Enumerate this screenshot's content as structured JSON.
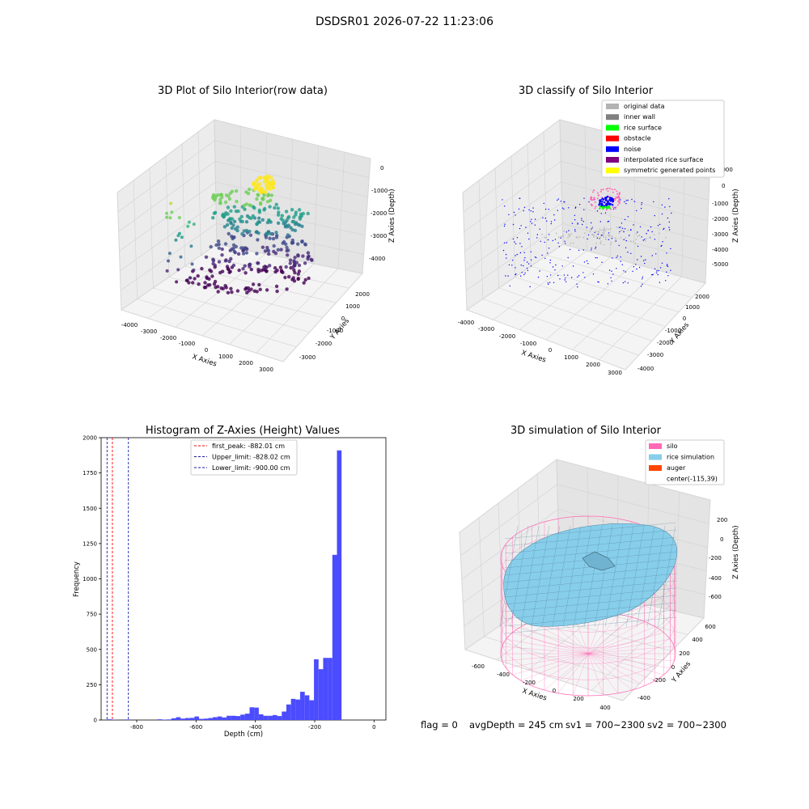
{
  "suptitle": "DSDSR01 2026-07-22 11:23:06",
  "chart_data": [
    {
      "type": "scatter",
      "projection": "3d",
      "title": "3D Plot of Silo Interior(row data)",
      "xlabel": "X Axies",
      "ylabel": "Y Axies",
      "zlabel": "Z Axies (Depth)",
      "x_ticks": [
        "-4000",
        "-3000",
        "-2000",
        "-1000",
        "0",
        "1000",
        "2000",
        "3000"
      ],
      "y_ticks": [
        "-3000",
        "-2000",
        "-1000",
        "0",
        "1000",
        "2000"
      ],
      "z_ticks": [
        "-4000",
        "-3000",
        "-2000",
        "-1000",
        "0"
      ],
      "xlim": [
        -4200,
        3200
      ],
      "ylim": [
        -3700,
        2600
      ],
      "zlim": [
        -4600,
        200
      ],
      "colormap": "viridis",
      "grid": true
    },
    {
      "type": "scatter",
      "projection": "3d",
      "title": "3D classify of Silo Interior",
      "xlabel": "X Axies",
      "ylabel": "Y Axies",
      "zlabel": "Z Axies (Depth)",
      "x_ticks": [
        "-4000",
        "-3000",
        "-2000",
        "-1000",
        "0",
        "1000",
        "2000",
        "3000"
      ],
      "y_ticks": [
        "-4000",
        "-3000",
        "-2000",
        "-1000",
        "0",
        "1000",
        "2000"
      ],
      "z_ticks": [
        "-5000",
        "-4000",
        "-3000",
        "-2000",
        "-1000",
        "0",
        "1000"
      ],
      "legend_position": "top-right",
      "legend": [
        {
          "label": "original data",
          "color": "#b3b3b3"
        },
        {
          "label": "inner wall",
          "color": "#808080"
        },
        {
          "label": "rice surface",
          "color": "#00ff00"
        },
        {
          "label": "obstacle",
          "color": "#ff0000"
        },
        {
          "label": "noise",
          "color": "#0000ff"
        },
        {
          "label": "interpolated rice surface",
          "color": "#800080"
        },
        {
          "label": "symmetric generated points",
          "color": "#ffff00"
        }
      ],
      "grid": true
    },
    {
      "type": "bar",
      "title": "Histogram of Z-Axies (Height) Values",
      "xlabel": "Depth (cm)",
      "ylabel": "Frequency",
      "xlim": [
        -920,
        40
      ],
      "ylim": [
        0,
        2000
      ],
      "x_ticks": [
        -800,
        -600,
        -400,
        -200,
        0
      ],
      "y_ticks": [
        0,
        250,
        500,
        750,
        1000,
        1250,
        1500,
        1750,
        2000
      ],
      "bar_color": "#4b4bff",
      "bin_width": 15.5,
      "bins_start": -900,
      "values": [
        5,
        2,
        0,
        0,
        4,
        0,
        0,
        0,
        0,
        0,
        0,
        5,
        3,
        4,
        12,
        20,
        10,
        14,
        15,
        25,
        8,
        10,
        14,
        20,
        25,
        18,
        30,
        30,
        28,
        38,
        45,
        90,
        88,
        40,
        30,
        30,
        35,
        28,
        60,
        110,
        150,
        145,
        200,
        175,
        140,
        430,
        360,
        440,
        440,
        1170,
        1910
      ],
      "vlines": [
        {
          "label": "first_peak: -882.01 cm",
          "value": -882.01,
          "color": "#ff0000"
        },
        {
          "label": "Upper_limit: -828.02 cm",
          "value": -828.02,
          "color": "#1a1aa0"
        },
        {
          "label": "Lower_limit: -900.00 cm",
          "value": -900.0,
          "color": "#1a1aa0"
        }
      ],
      "legend_position": "top-center",
      "grid": false
    },
    {
      "type": "surface",
      "projection": "3d",
      "title": "3D simulation of Silo Interior",
      "xlabel": "X Axies",
      "ylabel": "Y Axies",
      "zlabel": "Z Axies (Depth)",
      "x_ticks": [
        "-600",
        "-400",
        "-200",
        "0",
        "200",
        "400"
      ],
      "y_ticks": [
        "-400",
        "-200",
        "0",
        "200",
        "400",
        "600"
      ],
      "z_ticks": [
        "-600",
        "-400",
        "-200",
        "0",
        "200"
      ],
      "legend_position": "top-right",
      "legend": [
        {
          "label": "silo",
          "color": "#ff69b4"
        },
        {
          "label": "rice simulation",
          "color": "#87ceeb"
        },
        {
          "label": "auger",
          "color": "#ff4500"
        },
        {
          "label": "center(-115,39)",
          "color": ""
        }
      ],
      "grid": true
    }
  ],
  "footer": {
    "flag": "flag = 0",
    "avg": "avgDepth = 245 cm",
    "sv1": "sv1 = 700~2300",
    "sv2": "sv2 = 700~2300"
  }
}
